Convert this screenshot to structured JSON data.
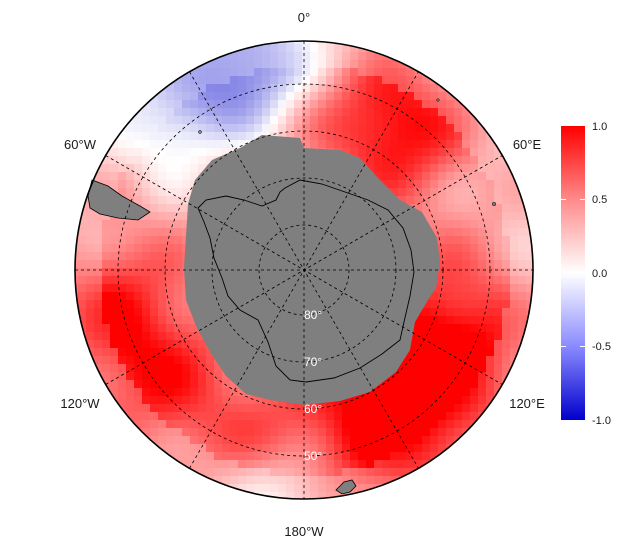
{
  "map": {
    "projection": "south-polar-stereographic",
    "longitude_labels": [
      {
        "lon": 0,
        "text": "0°"
      },
      {
        "lon": -60,
        "text": "60°W"
      },
      {
        "lon": 60,
        "text": "60°E"
      },
      {
        "lon": -120,
        "text": "120°W"
      },
      {
        "lon": 120,
        "text": "120°E"
      },
      {
        "lon": 180,
        "text": "180°W"
      }
    ],
    "latitude_labels": [
      {
        "lat": -80,
        "text": "80°"
      },
      {
        "lat": -70,
        "text": "70°"
      },
      {
        "lat": -60,
        "text": "60°"
      },
      {
        "lat": -50,
        "text": "50°"
      }
    ],
    "colorbar": {
      "min": -1.0,
      "max": 1.0,
      "ticks": [
        {
          "value": 1.0,
          "text": "1.0"
        },
        {
          "value": 0.5,
          "text": "0.5"
        },
        {
          "value": 0.0,
          "text": "0.0"
        },
        {
          "value": -0.5,
          "text": "-0.5"
        },
        {
          "value": -1.0,
          "text": "-1.0"
        }
      ],
      "colors": {
        "low": "#0000cc",
        "mid": "#ffffff",
        "high": "#ff0000"
      }
    },
    "colors": {
      "land": "#7f7f7f",
      "outline": "#000000",
      "graticule": "#000000"
    }
  }
}
